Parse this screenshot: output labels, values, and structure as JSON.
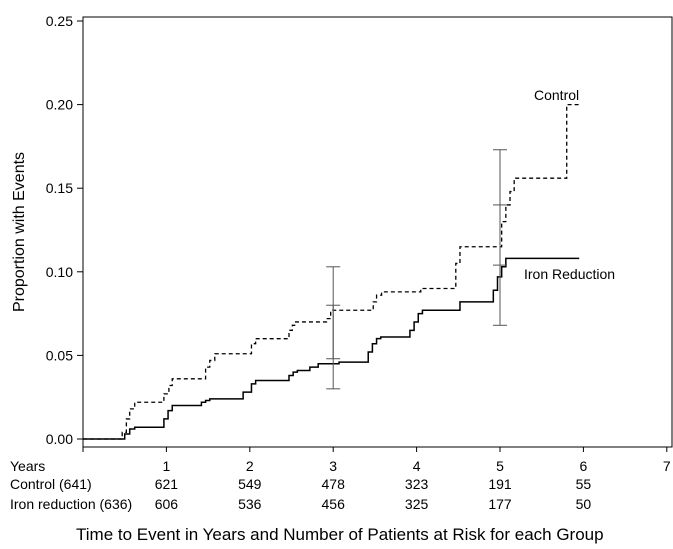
{
  "chart_data": {
    "type": "line",
    "title": "",
    "ylabel": "Proportion with Events",
    "xlabel": "Time to Event in Years and Number of Patients at Risk for each Group",
    "xlim": [
      0,
      7
    ],
    "ylim": [
      0,
      0.25
    ],
    "yticks": [
      "0.00",
      "0.05",
      "0.10",
      "0.15",
      "0.20",
      "0.25"
    ],
    "xticks": [
      1,
      2,
      3,
      4,
      5,
      6,
      7
    ],
    "risk_table": {
      "header": "Years",
      "times": [
        "1",
        "2",
        "3",
        "4",
        "5",
        "6",
        "7"
      ],
      "rows": [
        {
          "label": "Control (641)",
          "values": [
            "621",
            "549",
            "478",
            "323",
            "191",
            "55"
          ]
        },
        {
          "label": "Iron reduction (636)",
          "values": [
            "606",
            "536",
            "456",
            "325",
            "177",
            "50"
          ]
        }
      ]
    },
    "series": [
      {
        "name": "Control",
        "style": "dashed",
        "x": [
          0,
          0.43,
          0.47,
          0.52,
          0.56,
          0.62,
          0.82,
          0.97,
          1.03,
          1.07,
          1.12,
          1.47,
          1.52,
          1.58,
          1.96,
          2.02,
          2.07,
          2.41,
          2.47,
          2.51,
          2.55,
          2.92,
          2.97,
          3.02,
          3.48,
          3.52,
          3.58,
          4.05,
          4.47,
          4.52,
          4.97,
          5.02,
          5.07,
          5.12,
          5.17,
          5.57,
          5.8,
          5.95
        ],
        "y": [
          0,
          0,
          0.004,
          0.012,
          0.018,
          0.022,
          0.022,
          0.027,
          0.032,
          0.036,
          0.036,
          0.043,
          0.047,
          0.051,
          0.051,
          0.057,
          0.06,
          0.06,
          0.065,
          0.068,
          0.07,
          0.072,
          0.077,
          0.077,
          0.082,
          0.086,
          0.088,
          0.09,
          0.105,
          0.115,
          0.115,
          0.13,
          0.14,
          0.148,
          0.156,
          0.156,
          0.2,
          0.2
        ]
      },
      {
        "name": "Iron Reduction",
        "style": "solid",
        "x": [
          0,
          0.43,
          0.5,
          0.56,
          0.62,
          0.97,
          1.02,
          1.07,
          1.42,
          1.47,
          1.52,
          1.92,
          2.02,
          2.07,
          2.47,
          2.52,
          2.57,
          2.72,
          2.82,
          3.07,
          3.12,
          3.42,
          3.47,
          3.52,
          3.57,
          3.92,
          3.97,
          4.02,
          4.07,
          4.47,
          4.52,
          4.92,
          4.97,
          5.02,
          5.07,
          5.95
        ],
        "y": [
          0,
          0,
          0.003,
          0.006,
          0.007,
          0.012,
          0.017,
          0.02,
          0.022,
          0.023,
          0.024,
          0.028,
          0.033,
          0.035,
          0.038,
          0.04,
          0.041,
          0.043,
          0.045,
          0.046,
          0.046,
          0.052,
          0.057,
          0.06,
          0.061,
          0.065,
          0.07,
          0.075,
          0.077,
          0.077,
          0.082,
          0.089,
          0.097,
          0.103,
          0.108,
          0.108
        ]
      }
    ],
    "error_bars": [
      {
        "series": "Control",
        "x": 3,
        "low": 0.048,
        "high": 0.103
      },
      {
        "series": "Iron Reduction",
        "x": 3,
        "low": 0.03,
        "high": 0.08
      },
      {
        "series": "Control",
        "x": 5,
        "low": 0.104,
        "high": 0.173
      },
      {
        "series": "Iron Reduction",
        "x": 5,
        "low": 0.068,
        "high": 0.14
      }
    ],
    "annotations": [
      "Control",
      "Iron Reduction"
    ]
  }
}
